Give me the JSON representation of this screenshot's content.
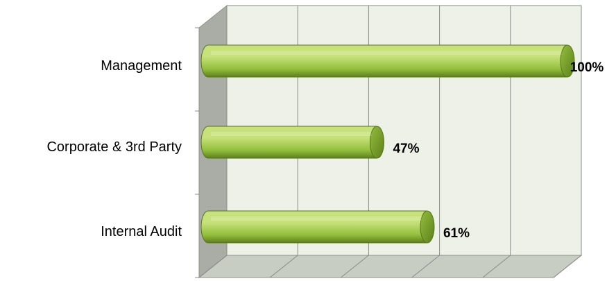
{
  "chart_data": {
    "type": "bar",
    "orientation": "horizontal",
    "categories": [
      "Management",
      "Corporate & 3rd Party",
      "Internal Audit"
    ],
    "values": [
      100,
      47,
      61
    ],
    "value_labels": [
      "100%",
      "47%",
      "61%"
    ],
    "xlim": [
      0,
      100
    ],
    "grid": true,
    "legend": "none",
    "style": "3d-cylinder",
    "colors": {
      "bar_light": "#c7e27a",
      "bar_mid": "#93bf3c",
      "bar_dark": "#5d7f1c",
      "wall": "#eef1e8",
      "side_wall": "#a9ada5",
      "floor": "#c8cdc4",
      "gridline": "#8a8a8a"
    }
  }
}
